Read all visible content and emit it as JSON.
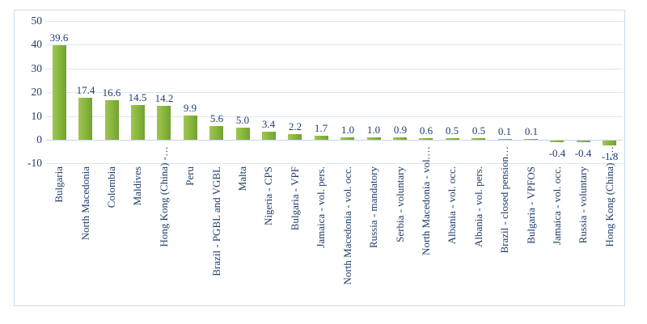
{
  "chart_data": {
    "type": "bar",
    "title": "",
    "xlabel": "",
    "ylabel": "",
    "legend": "none",
    "grid": true,
    "bar_label_position": "outside-end",
    "categories": [
      "Bulgaria",
      "North Macedonia",
      "Colombia",
      "Maldives",
      "Hong Kong (China) -…",
      "Peru",
      "Brazil - PGBL and VGBL",
      "Malta",
      "Nigeria - CPS",
      "Bulgaria - VPF",
      "Jamaica - vol. pers.",
      "North Macedonia - vol. occ.",
      "Russia - mandatory",
      "Serbia - voluntary",
      "North Macedonia - vol.…",
      "Albania - vol. occ.",
      "Albania - vol. pers.",
      "Brazil - closed pension…",
      "Bulgaria - VPFOS",
      "Jamaica - vol. occ.",
      "Russia - voluntary",
      "Hong Kong (China) -…"
    ],
    "values": [
      39.6,
      17.4,
      16.6,
      14.5,
      14.2,
      9.9,
      5.6,
      5.0,
      3.4,
      2.2,
      1.7,
      1.0,
      1.0,
      0.9,
      0.6,
      0.5,
      0.5,
      0.1,
      0.1,
      -0.4,
      -0.4,
      -1.8
    ],
    "data_labels": [
      "39.6",
      "17.4",
      "16.6",
      "14.5",
      "14.2",
      "9.9",
      "5.6",
      "5.0",
      "3.4",
      "2.2",
      "1.7",
      "1.0",
      "1.0",
      "0.9",
      "0.6",
      "0.5",
      "0.5",
      "0.1",
      "0.1",
      "-0.4",
      "-0.4",
      "-1.8"
    ],
    "y_ticks": [
      50,
      40,
      30,
      20,
      10,
      0,
      -10
    ],
    "ylim": [
      -10,
      50
    ],
    "colors": {
      "bar_gradient_start": "#9fc653",
      "bar_gradient_mid": "#86b53c",
      "bar_gradient_end": "#73a132",
      "label_text": "#1f3d6b",
      "gridline": "#dbe5f3",
      "zero_axis": "#c7d5ec",
      "frame_border": "#ccd9ed",
      "background": "#ffffff"
    }
  }
}
